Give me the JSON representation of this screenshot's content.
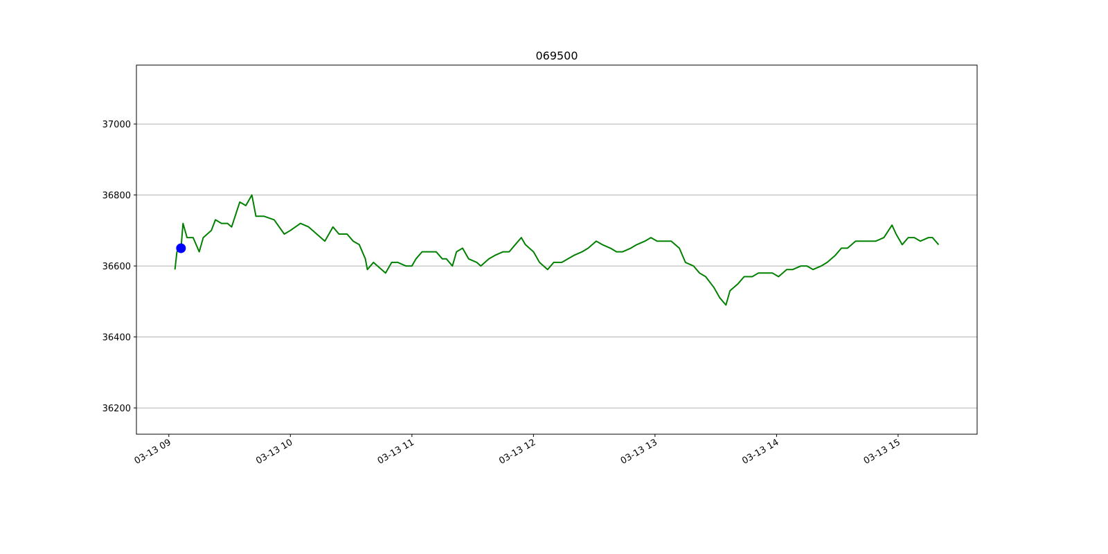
{
  "chart_data": {
    "type": "line",
    "title": "069500",
    "x": [
      "03-13 09:03",
      "03-13 09:04",
      "03-13 09:06",
      "03-13 09:07",
      "03-13 09:09",
      "03-13 09:12",
      "03-13 09:15",
      "03-13 09:17",
      "03-13 09:21",
      "03-13 09:23",
      "03-13 09:26",
      "03-13 09:29",
      "03-13 09:31",
      "03-13 09:35",
      "03-13 09:38",
      "03-13 09:41",
      "03-13 09:43",
      "03-13 09:47",
      "03-13 09:52",
      "03-13 09:57",
      "03-13 10:00",
      "03-13 10:05",
      "03-13 10:09",
      "03-13 10:13",
      "03-13 10:17",
      "03-13 10:21",
      "03-13 10:24",
      "03-13 10:28",
      "03-13 10:31",
      "03-13 10:34",
      "03-13 10:37",
      "03-13 10:38",
      "03-13 10:41",
      "03-13 10:45",
      "03-13 10:47",
      "03-13 10:50",
      "03-13 10:53",
      "03-13 10:57",
      "03-13 11:00",
      "03-13 11:02",
      "03-13 11:05",
      "03-13 11:09",
      "03-13 11:12",
      "03-13 11:15",
      "03-13 11:17",
      "03-13 11:20",
      "03-13 11:22",
      "03-13 11:25",
      "03-13 11:28",
      "03-13 11:32",
      "03-13 11:34",
      "03-13 11:38",
      "03-13 11:41",
      "03-13 11:45",
      "03-13 11:48",
      "03-13 11:51",
      "03-13 11:54",
      "03-13 11:56",
      "03-13 12:00",
      "03-13 12:03",
      "03-13 12:07",
      "03-13 12:10",
      "03-13 12:14",
      "03-13 12:17",
      "03-13 12:20",
      "03-13 12:24",
      "03-13 12:27",
      "03-13 12:31",
      "03-13 12:34",
      "03-13 12:38",
      "03-13 12:41",
      "03-13 12:44",
      "03-13 12:48",
      "03-13 12:51",
      "03-13 12:55",
      "03-13 12:58",
      "03-13 13:01",
      "03-13 13:05",
      "03-13 13:08",
      "03-13 13:12",
      "03-13 13:15",
      "03-13 13:19",
      "03-13 13:22",
      "03-13 13:25",
      "03-13 13:29",
      "03-13 13:32",
      "03-13 13:35",
      "03-13 13:37",
      "03-13 13:41",
      "03-13 13:44",
      "03-13 13:48",
      "03-13 13:51",
      "03-13 13:54",
      "03-13 13:58",
      "03-13 14:01",
      "03-13 14:05",
      "03-13 14:08",
      "03-13 14:12",
      "03-13 14:15",
      "03-13 14:18",
      "03-13 14:22",
      "03-13 14:25",
      "03-13 14:29",
      "03-13 14:32",
      "03-13 14:35",
      "03-13 14:39",
      "03-13 14:42",
      "03-13 14:46",
      "03-13 14:49",
      "03-13 14:53",
      "03-13 14:57",
      "03-13 14:59",
      "03-13 15:02",
      "03-13 15:05",
      "03-13 15:08",
      "03-13 15:11",
      "03-13 15:15",
      "03-13 15:17",
      "03-13 15:20"
    ],
    "series": [
      {
        "color": "green",
        "values": [
          36590,
          36640,
          36650,
          36720,
          36680,
          36680,
          36640,
          36680,
          36700,
          36730,
          36720,
          36720,
          36710,
          36780,
          36770,
          36800,
          36740,
          36740,
          36730,
          36690,
          36700,
          36720,
          36710,
          36690,
          36670,
          36710,
          36690,
          36690,
          36670,
          36660,
          36620,
          36590,
          36610,
          36590,
          36580,
          36610,
          36610,
          36600,
          36600,
          36620,
          36640,
          36640,
          36640,
          36620,
          36620,
          36600,
          36640,
          36650,
          36620,
          36610,
          36600,
          36620,
          36630,
          36640,
          36640,
          36660,
          36680,
          36660,
          36640,
          36610,
          36590,
          36610,
          36610,
          36620,
          36630,
          36640,
          36650,
          36670,
          36660,
          36650,
          36640,
          36640,
          36650,
          36660,
          36670,
          36680,
          36670,
          36670,
          36670,
          36650,
          36610,
          36600,
          36580,
          36570,
          36540,
          36510,
          36490,
          36530,
          36550,
          36570,
          36570,
          36580,
          36580,
          36580,
          36570,
          36590,
          36590,
          36600,
          36600,
          36590,
          36600,
          36610,
          36630,
          36650,
          36650,
          36670,
          36670,
          36670,
          36670,
          36680,
          36715,
          36690,
          36660,
          36680,
          36680,
          36670,
          36680,
          36680,
          36660
        ]
      }
    ],
    "marker": {
      "x": "03-13 09:06",
      "value": 36650,
      "color": "blue"
    },
    "xlim": [
      "03-13 08:44",
      "03-13 15:39"
    ],
    "xticks": [
      {
        "value": "03-13 09:00",
        "label": "03-13 09"
      },
      {
        "value": "03-13 10:00",
        "label": "03-13 10"
      },
      {
        "value": "03-13 11:00",
        "label": "03-13 11"
      },
      {
        "value": "03-13 12:00",
        "label": "03-13 12"
      },
      {
        "value": "03-13 13:00",
        "label": "03-13 13"
      },
      {
        "value": "03-13 14:00",
        "label": "03-13 14"
      },
      {
        "value": "03-13 15:00",
        "label": "03-13 15"
      }
    ],
    "ylim": [
      36126,
      37166
    ],
    "yticks": [
      36200,
      36400,
      36600,
      36800,
      37000
    ],
    "grid": "y"
  }
}
